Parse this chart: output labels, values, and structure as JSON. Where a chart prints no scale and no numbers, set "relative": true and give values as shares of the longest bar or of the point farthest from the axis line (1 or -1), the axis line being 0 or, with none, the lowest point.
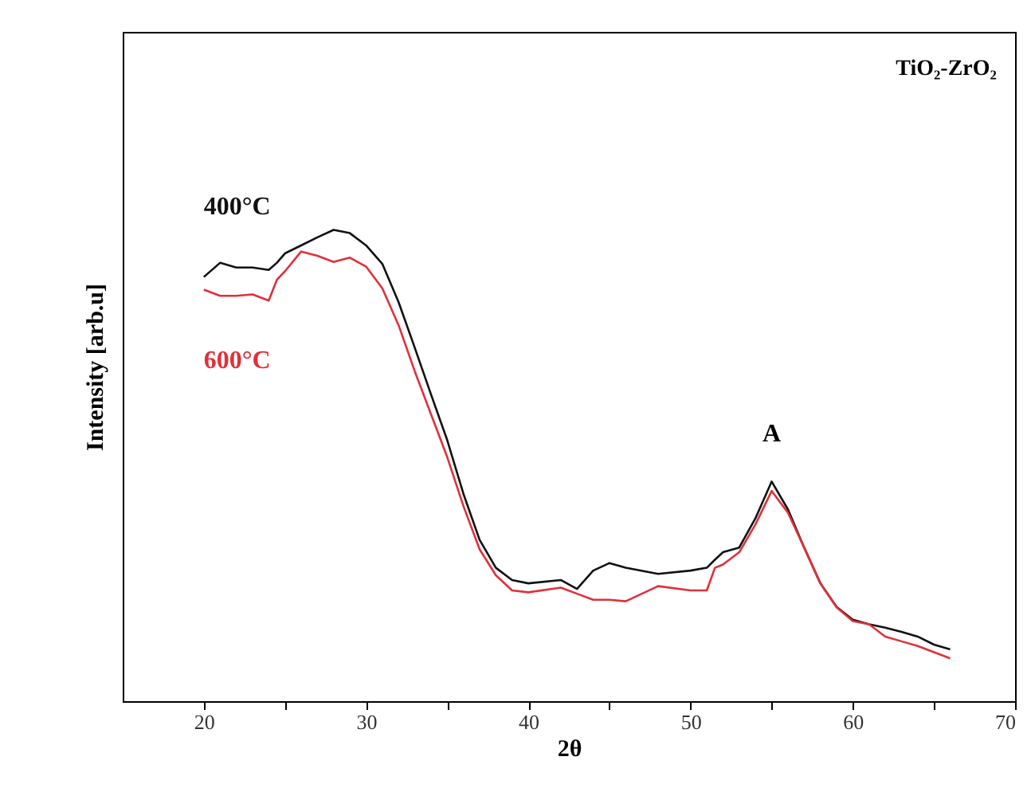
{
  "chart_data": {
    "type": "line",
    "relative": true,
    "xlabel": "2θ",
    "ylabel": "Intensity [arb.u]",
    "x": [
      20,
      21,
      22,
      23,
      24,
      24.5,
      25,
      26,
      27,
      28,
      29,
      30,
      31,
      32,
      33,
      34,
      35,
      36,
      37,
      38,
      39,
      40,
      42,
      43,
      44,
      45,
      46,
      48,
      50,
      51,
      51.5,
      52,
      53,
      54,
      55,
      56,
      57,
      58,
      59,
      60,
      61,
      62,
      63,
      64,
      65,
      66
    ],
    "series": [
      {
        "name": "400°C",
        "color": "#111111",
        "values": [
          0.9,
          0.93,
          0.92,
          0.92,
          0.915,
          0.93,
          0.95,
          0.967,
          0.984,
          1.0,
          0.993,
          0.967,
          0.928,
          0.847,
          0.75,
          0.651,
          0.554,
          0.44,
          0.342,
          0.283,
          0.257,
          0.25,
          0.257,
          0.238,
          0.277,
          0.293,
          0.283,
          0.27,
          0.277,
          0.283,
          0.3,
          0.316,
          0.326,
          0.388,
          0.466,
          0.407,
          0.326,
          0.25,
          0.2,
          0.173,
          0.163,
          0.156,
          0.147,
          0.137,
          0.12,
          0.11
        ]
      },
      {
        "name": "600°C",
        "color": "#e0303a",
        "values": [
          0.873,
          0.86,
          0.86,
          0.863,
          0.85,
          0.894,
          0.912,
          0.954,
          0.945,
          0.932,
          0.941,
          0.922,
          0.876,
          0.798,
          0.7,
          0.609,
          0.518,
          0.414,
          0.322,
          0.267,
          0.235,
          0.231,
          0.241,
          0.228,
          0.215,
          0.215,
          0.212,
          0.244,
          0.235,
          0.235,
          0.283,
          0.29,
          0.316,
          0.375,
          0.446,
          0.4,
          0.326,
          0.25,
          0.199,
          0.17,
          0.163,
          0.137,
          0.127,
          0.117,
          0.104,
          0.091
        ]
      }
    ],
    "xlim": [
      15,
      70
    ],
    "xticks": [
      20,
      {
        "value": 25,
        "label": null
      },
      30,
      {
        "value": 35,
        "label": null
      },
      40,
      {
        "value": 45,
        "label": null
      },
      50,
      {
        "value": 55,
        "label": null
      },
      60,
      {
        "value": 65,
        "label": null
      },
      70
    ],
    "annotations": [
      {
        "text": "A",
        "x": 55,
        "y": 0.466
      },
      "TiO₂-ZrO₂"
    ],
    "grid": false,
    "legend": false,
    "marker": "none",
    "line_style": "solid"
  }
}
